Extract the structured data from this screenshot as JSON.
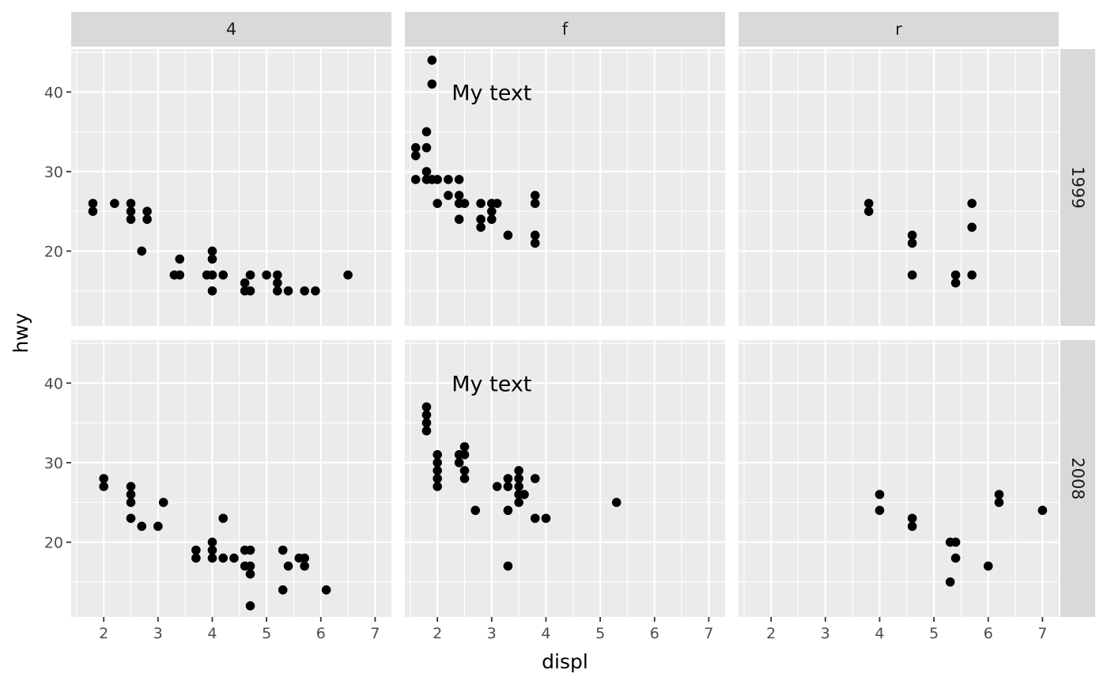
{
  "chart_data": {
    "type": "scatter",
    "title": "",
    "xlabel": "displ",
    "ylabel": "hwy",
    "xlim": [
      1.4,
      7.3
    ],
    "ylim": [
      10.6,
      45.4
    ],
    "x_ticks": [
      2,
      3,
      4,
      5,
      6,
      7
    ],
    "x_tick_labels": [
      "2",
      "3",
      "4",
      "5",
      "6",
      "7"
    ],
    "y_ticks": [
      20,
      30,
      40
    ],
    "y_tick_labels": [
      "20",
      "30",
      "40"
    ],
    "grid": true,
    "facet_cols": [
      "4",
      "f",
      "r"
    ],
    "facet_rows": [
      "1999",
      "2008"
    ],
    "annotation": {
      "text": "My text",
      "x": 3,
      "y": 40,
      "facets": [
        [
          0,
          1
        ],
        [
          1,
          1
        ]
      ]
    },
    "panels": [
      {
        "row": "1999",
        "col": "4",
        "points": [
          [
            1.8,
            26
          ],
          [
            1.8,
            25
          ],
          [
            2.2,
            26
          ],
          [
            2.5,
            26
          ],
          [
            2.5,
            25
          ],
          [
            2.5,
            24
          ],
          [
            2.7,
            20
          ],
          [
            2.8,
            25
          ],
          [
            2.8,
            24
          ],
          [
            3.3,
            17
          ],
          [
            3.4,
            17
          ],
          [
            3.4,
            19
          ],
          [
            3.9,
            17
          ],
          [
            4.0,
            20
          ],
          [
            4.0,
            19
          ],
          [
            4.0,
            17
          ],
          [
            4.0,
            15
          ],
          [
            4.2,
            17
          ],
          [
            4.6,
            16
          ],
          [
            4.6,
            15
          ],
          [
            4.7,
            17
          ],
          [
            4.7,
            15
          ],
          [
            5.0,
            17
          ],
          [
            5.2,
            17
          ],
          [
            5.2,
            16
          ],
          [
            5.2,
            15
          ],
          [
            5.4,
            15
          ],
          [
            5.7,
            15
          ],
          [
            5.9,
            15
          ],
          [
            6.5,
            17
          ]
        ]
      },
      {
        "row": "1999",
        "col": "f",
        "points": [
          [
            1.6,
            33
          ],
          [
            1.6,
            32
          ],
          [
            1.6,
            29
          ],
          [
            1.8,
            35
          ],
          [
            1.8,
            33
          ],
          [
            1.8,
            30
          ],
          [
            1.8,
            29
          ],
          [
            1.9,
            44
          ],
          [
            1.9,
            41
          ],
          [
            1.9,
            29
          ],
          [
            2.0,
            29
          ],
          [
            2.0,
            26
          ],
          [
            2.2,
            29
          ],
          [
            2.2,
            27
          ],
          [
            2.4,
            29
          ],
          [
            2.4,
            27
          ],
          [
            2.4,
            26
          ],
          [
            2.4,
            24
          ],
          [
            2.5,
            26
          ],
          [
            2.8,
            26
          ],
          [
            2.8,
            24
          ],
          [
            2.8,
            23
          ],
          [
            3.0,
            26
          ],
          [
            3.0,
            25
          ],
          [
            3.0,
            24
          ],
          [
            3.1,
            26
          ],
          [
            3.3,
            22
          ],
          [
            3.8,
            27
          ],
          [
            3.8,
            26
          ],
          [
            3.8,
            22
          ],
          [
            3.8,
            21
          ]
        ]
      },
      {
        "row": "1999",
        "col": "r",
        "points": [
          [
            3.8,
            26
          ],
          [
            3.8,
            25
          ],
          [
            4.6,
            22
          ],
          [
            4.6,
            21
          ],
          [
            4.6,
            17
          ],
          [
            5.4,
            17
          ],
          [
            5.4,
            16
          ],
          [
            5.7,
            26
          ],
          [
            5.7,
            23
          ],
          [
            5.7,
            17
          ]
        ]
      },
      {
        "row": "2008",
        "col": "4",
        "points": [
          [
            2.0,
            28
          ],
          [
            2.0,
            27
          ],
          [
            2.5,
            27
          ],
          [
            2.5,
            26
          ],
          [
            2.5,
            25
          ],
          [
            2.5,
            23
          ],
          [
            2.7,
            22
          ],
          [
            3.0,
            22
          ],
          [
            3.1,
            25
          ],
          [
            3.7,
            19
          ],
          [
            3.7,
            18
          ],
          [
            4.0,
            20
          ],
          [
            4.0,
            19
          ],
          [
            4.0,
            18
          ],
          [
            4.2,
            23
          ],
          [
            4.2,
            18
          ],
          [
            4.4,
            18
          ],
          [
            4.6,
            19
          ],
          [
            4.6,
            17
          ],
          [
            4.7,
            19
          ],
          [
            4.7,
            17
          ],
          [
            4.7,
            16
          ],
          [
            4.7,
            12
          ],
          [
            5.3,
            19
          ],
          [
            5.3,
            14
          ],
          [
            5.4,
            17
          ],
          [
            5.6,
            18
          ],
          [
            5.7,
            18
          ],
          [
            5.7,
            17
          ],
          [
            6.1,
            14
          ]
        ]
      },
      {
        "row": "2008",
        "col": "f",
        "points": [
          [
            1.8,
            37
          ],
          [
            1.8,
            36
          ],
          [
            1.8,
            35
          ],
          [
            1.8,
            34
          ],
          [
            2.0,
            31
          ],
          [
            2.0,
            30
          ],
          [
            2.0,
            29
          ],
          [
            2.0,
            28
          ],
          [
            2.0,
            27
          ],
          [
            2.4,
            31
          ],
          [
            2.4,
            30
          ],
          [
            2.5,
            32
          ],
          [
            2.5,
            31
          ],
          [
            2.5,
            29
          ],
          [
            2.5,
            28
          ],
          [
            2.7,
            24
          ],
          [
            3.1,
            27
          ],
          [
            3.3,
            28
          ],
          [
            3.3,
            27
          ],
          [
            3.3,
            24
          ],
          [
            3.3,
            17
          ],
          [
            3.5,
            29
          ],
          [
            3.5,
            28
          ],
          [
            3.5,
            27
          ],
          [
            3.5,
            26
          ],
          [
            3.5,
            25
          ],
          [
            3.6,
            26
          ],
          [
            3.8,
            28
          ],
          [
            3.8,
            23
          ],
          [
            4.0,
            23
          ],
          [
            5.3,
            25
          ]
        ]
      },
      {
        "row": "2008",
        "col": "r",
        "points": [
          [
            4.0,
            26
          ],
          [
            4.0,
            24
          ],
          [
            4.6,
            23
          ],
          [
            4.6,
            22
          ],
          [
            5.3,
            20
          ],
          [
            5.3,
            15
          ],
          [
            5.4,
            20
          ],
          [
            5.4,
            18
          ],
          [
            6.0,
            17
          ],
          [
            6.2,
            26
          ],
          [
            6.2,
            25
          ],
          [
            7.0,
            24
          ]
        ]
      }
    ]
  }
}
